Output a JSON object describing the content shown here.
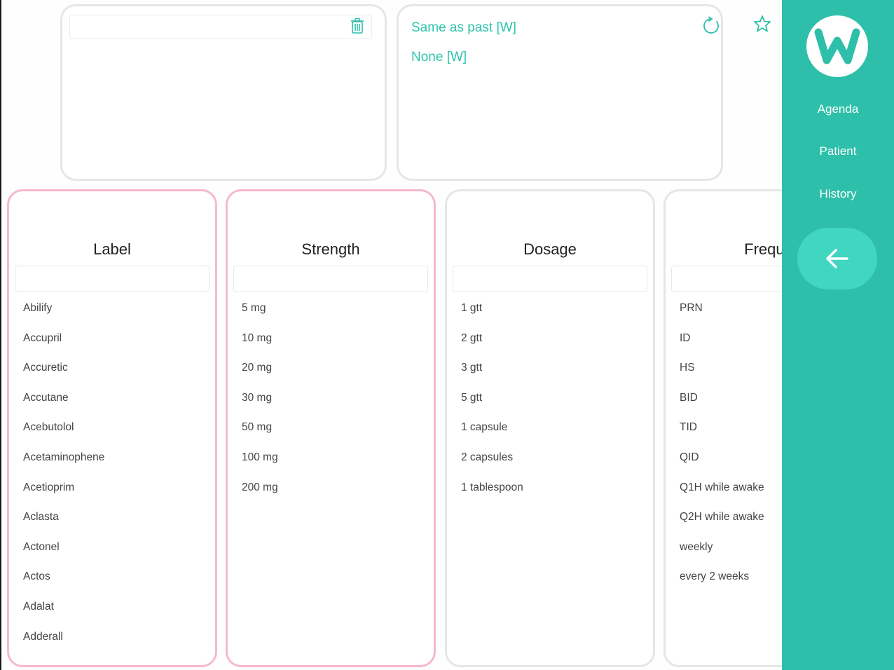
{
  "suggestions": {
    "items": [
      "Same as past [W]",
      "None [W]"
    ]
  },
  "columns": {
    "label": {
      "title": "Label",
      "items": [
        "Abilify",
        "Accupril",
        "Accuretic",
        "Accutane",
        "Acebutolol",
        "Acetaminophene",
        "Acetioprim",
        "Aclasta",
        "Actonel",
        "Actos",
        "Adalat",
        "Adderall"
      ]
    },
    "strength": {
      "title": "Strength",
      "items": [
        "5 mg",
        "10 mg",
        "20 mg",
        "30 mg",
        "50 mg",
        "100 mg",
        "200 mg"
      ]
    },
    "dosage": {
      "title": "Dosage",
      "items": [
        "1 gtt",
        "2 gtt",
        "3 gtt",
        "5 gtt",
        "1 capsule",
        "2 capsules",
        "1 tablespoon"
      ]
    },
    "frequency": {
      "title": "Freque",
      "items": [
        "PRN",
        "ID",
        "HS",
        "BID",
        "TID",
        "QID",
        "Q1H while awake",
        "Q2H while awake",
        "weekly",
        "every 2 weeks"
      ]
    }
  },
  "sidebar": {
    "logo_letter": "W",
    "nav": [
      "Agenda",
      "Patient",
      "History"
    ]
  },
  "icons": {
    "note_action": "trash-icon",
    "suggestion_action": "refresh-icon",
    "favorite": "star-icon",
    "back": "arrow-left-icon"
  },
  "colors": {
    "accent": "#2dbfa9",
    "accent_light": "#40d6c0",
    "selected_border": "#f7b8cf"
  }
}
